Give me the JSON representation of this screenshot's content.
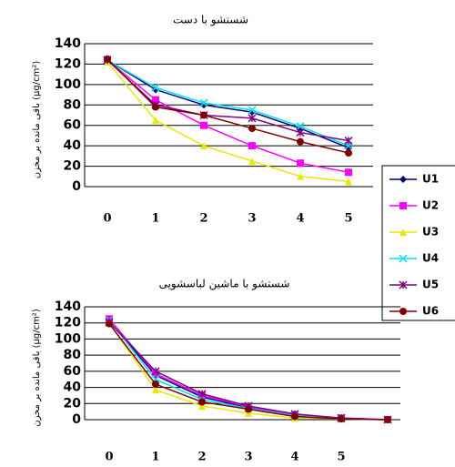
{
  "chart_data": [
    {
      "type": "line",
      "title": "شستشو با دست",
      "ylabel": "باقی مانده بر مخزن (µg/cm²)",
      "categories": [
        "0",
        "1",
        "2",
        "3",
        "4",
        "5"
      ],
      "ylim": [
        0,
        140
      ],
      "yticks": [
        0,
        20,
        40,
        60,
        80,
        100,
        120,
        140
      ],
      "grid": true,
      "legend": "right",
      "series": [
        {
          "name": "U1",
          "color": "#000080",
          "marker": "diamond",
          "values": [
            124,
            95,
            80,
            73,
            57,
            38
          ]
        },
        {
          "name": "U2",
          "color": "#ff00ff",
          "marker": "square",
          "values": [
            124,
            85,
            60,
            40,
            23,
            14
          ]
        },
        {
          "name": "U3",
          "color": "#e8e800",
          "marker": "triangle",
          "values": [
            122,
            65,
            40,
            25,
            10,
            5
          ]
        },
        {
          "name": "U4",
          "color": "#00e5ee",
          "marker": "x",
          "values": [
            124,
            97,
            82,
            75,
            59,
            40
          ]
        },
        {
          "name": "U5",
          "color": "#800080",
          "marker": "star",
          "values": [
            124,
            80,
            70,
            67,
            53,
            45
          ]
        },
        {
          "name": "U6",
          "color": "#800000",
          "marker": "circle",
          "values": [
            125,
            78,
            70,
            57,
            44,
            33
          ]
        }
      ]
    },
    {
      "type": "line",
      "title": "شستشو با ماشین لباسشویی",
      "ylabel": "باقی مانده بر مخزن (µg/cm²)",
      "categories": [
        "0",
        "1",
        "2",
        "3",
        "4",
        "5",
        null
      ],
      "ylim": [
        0,
        140
      ],
      "yticks": [
        0,
        20,
        40,
        60,
        80,
        100,
        120,
        140
      ],
      "grid": true,
      "series": [
        {
          "name": "U1",
          "color": "#000080",
          "marker": "diamond",
          "values": [
            122,
            55,
            28,
            15,
            5,
            1,
            0
          ]
        },
        {
          "name": "U2",
          "color": "#ff00ff",
          "marker": "square",
          "values": [
            125,
            57,
            30,
            16,
            6,
            2,
            0
          ]
        },
        {
          "name": "U3",
          "color": "#e8e800",
          "marker": "triangle",
          "values": [
            120,
            37,
            17,
            8,
            2,
            1,
            0
          ]
        },
        {
          "name": "U4",
          "color": "#00e5ee",
          "marker": "x",
          "values": [
            123,
            50,
            25,
            14,
            5,
            1,
            0
          ]
        },
        {
          "name": "U5",
          "color": "#800080",
          "marker": "star",
          "values": [
            121,
            60,
            32,
            17,
            7,
            2,
            0
          ]
        },
        {
          "name": "U6",
          "color": "#800000",
          "marker": "circle",
          "values": [
            119,
            44,
            22,
            13,
            4,
            1,
            0
          ]
        }
      ]
    }
  ]
}
